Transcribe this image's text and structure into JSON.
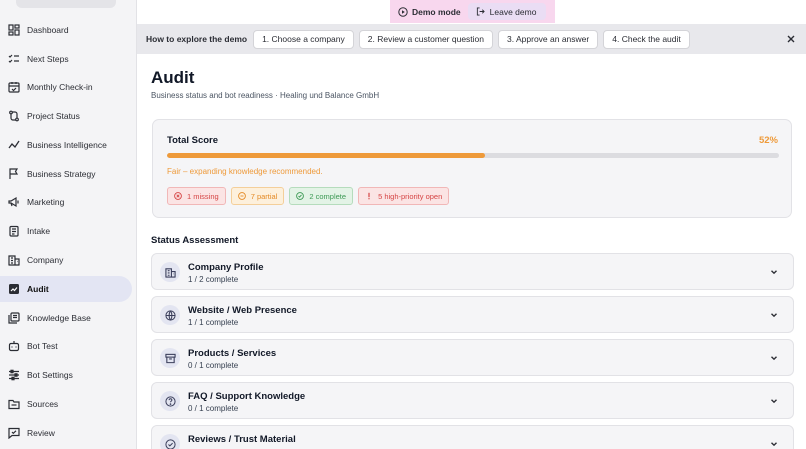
{
  "demo_banner": {
    "mode_label": "Demo mode",
    "leave_label": "Leave demo"
  },
  "guide": {
    "title": "How to explore the demo",
    "steps": [
      "1. Choose a company",
      "2. Review a customer question",
      "3. Approve an answer",
      "4. Check the audit"
    ]
  },
  "sidebar": {
    "items": [
      {
        "label": "Dashboard",
        "icon": "dashboard-icon"
      },
      {
        "label": "Next Steps",
        "icon": "checklist-icon"
      },
      {
        "label": "Monthly Check-in",
        "icon": "calendar-check-icon"
      },
      {
        "label": "Project Status",
        "icon": "route-icon"
      },
      {
        "label": "Business Intelligence",
        "icon": "trend-line-icon"
      },
      {
        "label": "Business Strategy",
        "icon": "flag-icon"
      },
      {
        "label": "Marketing",
        "icon": "megaphone-icon"
      },
      {
        "label": "Intake",
        "icon": "clipboard-icon"
      },
      {
        "label": "Company",
        "icon": "building-icon"
      },
      {
        "label": "Audit",
        "icon": "audit-chart-icon",
        "active": true
      },
      {
        "label": "Knowledge Base",
        "icon": "library-icon"
      },
      {
        "label": "Bot Test",
        "icon": "bot-icon"
      },
      {
        "label": "Bot Settings",
        "icon": "sliders-icon"
      },
      {
        "label": "Sources",
        "icon": "folder-icon"
      },
      {
        "label": "Review",
        "icon": "chat-review-icon"
      }
    ]
  },
  "page": {
    "title": "Audit",
    "subtitle": "Business status and bot readiness · Healing und Balance GmbH"
  },
  "score": {
    "title": "Total Score",
    "percent_label": "52%",
    "percent_value": 52,
    "message": "Fair – expanding knowledge recommended.",
    "badges": [
      {
        "label": "1 missing",
        "tone": "red",
        "icon": "x-circle-icon"
      },
      {
        "label": "7 partial",
        "tone": "orange",
        "icon": "minus-circle-icon"
      },
      {
        "label": "2 complete",
        "tone": "green",
        "icon": "check-circle-icon"
      },
      {
        "label": "5 high-priority open",
        "tone": "red",
        "icon": "exclamation-icon"
      }
    ]
  },
  "assessment": {
    "title": "Status Assessment",
    "sections": [
      {
        "title": "Company Profile",
        "progress": "1 / 2 complete",
        "icon": "building-icon"
      },
      {
        "title": "Website / Web Presence",
        "progress": "1 / 1 complete",
        "icon": "globe-icon"
      },
      {
        "title": "Products / Services",
        "progress": "0 / 1 complete",
        "icon": "archive-box-icon"
      },
      {
        "title": "FAQ / Support Knowledge",
        "progress": "0 / 1 complete",
        "icon": "question-circle-icon"
      },
      {
        "title": "Reviews / Trust Material",
        "progress": "",
        "icon": "badge-check-icon"
      }
    ]
  },
  "colors": {
    "accent_orange": "#ee9a3a",
    "active_nav": "#e3e5f3",
    "demo_pink": "#f8d7ee"
  }
}
